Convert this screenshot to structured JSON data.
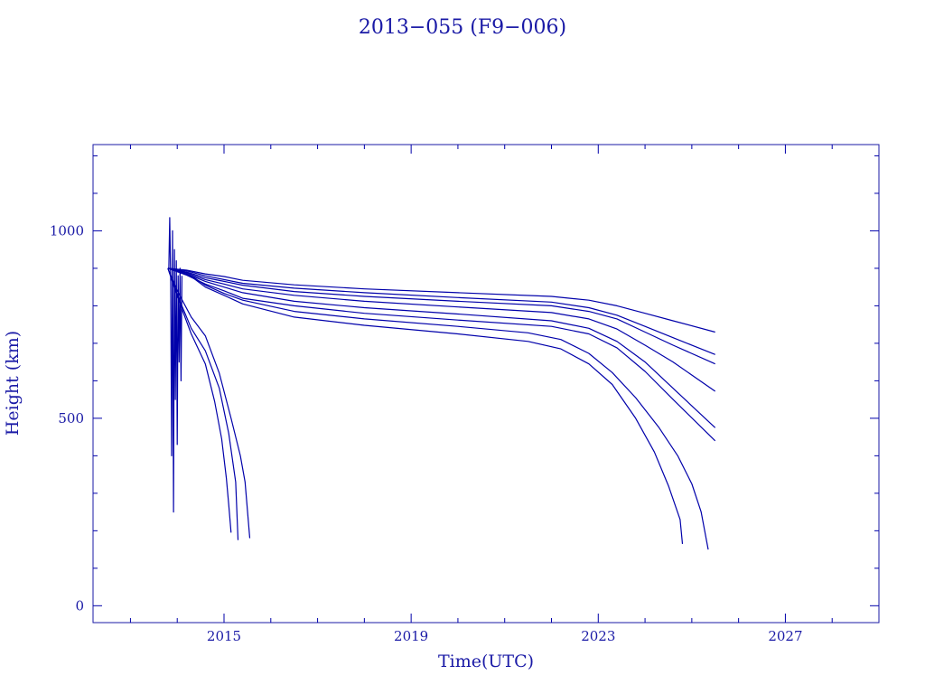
{
  "chart_data": {
    "type": "line",
    "title": "2013−055 (F9−006)",
    "xlabel": "Time(UTC)",
    "ylabel": "Height (km)",
    "xlim": [
      2012.2,
      2029.0
    ],
    "ylim": [
      -45,
      1230
    ],
    "xticks": [
      2015,
      2019,
      2023,
      2027
    ],
    "xtick_labels": [
      "2015",
      "2019",
      "2023",
      "2027"
    ],
    "yticks": [
      0,
      500,
      1000
    ],
    "ytick_labels": [
      "0",
      "500",
      "1000"
    ],
    "grid": false,
    "legend": "none",
    "color": "#0000aa",
    "series": [
      {
        "x": [
          2013.8,
          2014.2,
          2014.6,
          2015.0,
          2015.4,
          2016.5,
          2018.0,
          2020.0,
          2022.0,
          2022.8,
          2023.4,
          2024.0,
          2024.6,
          2025.5
        ],
        "y": [
          900,
          895,
          885,
          878,
          868,
          856,
          845,
          835,
          825,
          815,
          800,
          780,
          760,
          730
        ]
      },
      {
        "x": [
          2013.8,
          2014.2,
          2014.6,
          2015.0,
          2015.4,
          2016.5,
          2018.0,
          2020.0,
          2022.0,
          2022.8,
          2023.4,
          2024.0,
          2024.6,
          2025.5
        ],
        "y": [
          900,
          893,
          880,
          870,
          860,
          847,
          835,
          822,
          810,
          795,
          775,
          745,
          715,
          670
        ]
      },
      {
        "x": [
          2013.8,
          2014.2,
          2014.6,
          2015.0,
          2015.4,
          2016.5,
          2018.0,
          2020.0,
          2022.0,
          2022.8,
          2023.4,
          2024.0,
          2024.6,
          2025.5
        ],
        "y": [
          900,
          890,
          875,
          865,
          855,
          838,
          825,
          812,
          800,
          785,
          765,
          730,
          695,
          645
        ]
      },
      {
        "x": [
          2013.8,
          2014.2,
          2014.6,
          2015.0,
          2015.4,
          2016.5,
          2018.0,
          2020.0,
          2022.0,
          2022.8,
          2023.4,
          2024.0,
          2024.6,
          2025.5
        ],
        "y": [
          900,
          888,
          870,
          858,
          845,
          828,
          812,
          797,
          782,
          765,
          738,
          695,
          650,
          572
        ]
      },
      {
        "x": [
          2013.8,
          2014.2,
          2014.6,
          2015.0,
          2015.4,
          2016.5,
          2018.0,
          2020.0,
          2022.0,
          2022.8,
          2023.4,
          2024.0,
          2024.6,
          2025.5
        ],
        "y": [
          900,
          885,
          865,
          850,
          835,
          812,
          795,
          778,
          760,
          740,
          705,
          650,
          580,
          475
        ]
      },
      {
        "x": [
          2013.8,
          2014.2,
          2014.6,
          2015.0,
          2015.4,
          2016.5,
          2018.0,
          2020.0,
          2022.0,
          2022.8,
          2023.4,
          2024.0,
          2024.6,
          2025.5
        ],
        "y": [
          900,
          882,
          858,
          840,
          820,
          800,
          780,
          762,
          745,
          725,
          688,
          625,
          550,
          440
        ]
      },
      {
        "x": [
          2013.8,
          2014.3,
          2014.6,
          2015.0,
          2015.4,
          2016.5,
          2018.0,
          2020.0,
          2021.5,
          2022.2,
          2022.8,
          2023.3,
          2023.8,
          2024.2,
          2024.5,
          2024.75,
          2024.8
        ],
        "y": [
          900,
          878,
          850,
          828,
          805,
          770,
          748,
          725,
          705,
          685,
          645,
          590,
          500,
          410,
          320,
          230,
          165
        ]
      },
      {
        "x": [
          2013.8,
          2014.3,
          2014.6,
          2015.0,
          2015.4,
          2016.5,
          2018.0,
          2020.0,
          2021.5,
          2022.2,
          2022.8,
          2023.3,
          2023.8,
          2024.3,
          2024.7,
          2025.0,
          2025.2,
          2025.35
        ],
        "y": [
          900,
          880,
          855,
          833,
          815,
          785,
          765,
          745,
          728,
          710,
          673,
          622,
          555,
          475,
          400,
          325,
          250,
          150
        ]
      },
      {
        "x": [
          2013.8,
          2014.0,
          2014.3,
          2014.6,
          2014.8,
          2014.95,
          2015.05,
          2015.1,
          2015.15
        ],
        "y": [
          900,
          825,
          725,
          645,
          545,
          445,
          340,
          270,
          195
        ]
      },
      {
        "x": [
          2013.8,
          2014.0,
          2014.3,
          2014.6,
          2014.9,
          2015.1,
          2015.25,
          2015.3
        ],
        "y": [
          900,
          830,
          740,
          680,
          580,
          460,
          330,
          175
        ]
      },
      {
        "x": [
          2013.8,
          2014.0,
          2014.3,
          2014.6,
          2014.9,
          2015.15,
          2015.35,
          2015.45,
          2015.55
        ],
        "y": [
          900,
          840,
          770,
          720,
          620,
          500,
          400,
          330,
          180
        ]
      },
      {
        "x": [
          2013.82,
          2013.84,
          2013.86,
          2013.88,
          2013.9,
          2013.92,
          2013.94,
          2013.96,
          2013.98,
          2014.0,
          2014.02,
          2014.04,
          2014.06,
          2014.08,
          2014.1
        ],
        "y": [
          900,
          1035,
          860,
          400,
          1000,
          250,
          950,
          550,
          920,
          430,
          880,
          650,
          900,
          600,
          880
        ]
      }
    ]
  }
}
